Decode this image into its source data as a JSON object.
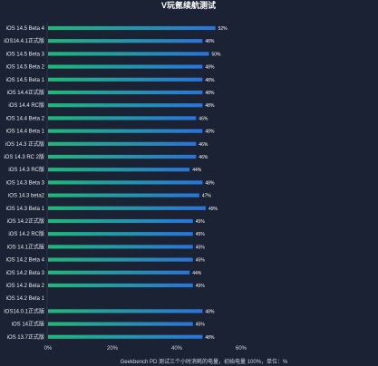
{
  "chart_data": {
    "type": "bar",
    "orientation": "horizontal",
    "title": "V玩氪续航测试",
    "xlabel": "Geekbench PD 测试三个小时消耗的电量，初始电量 100%，单位：%",
    "xlim": [
      0,
      60
    ],
    "xticks": [
      "0%",
      "20%",
      "40%",
      "60%"
    ],
    "grid": false,
    "categories": [
      "iOS 14.5 Beta 4",
      "iOS14.4.1正式版",
      "iOS 14.5 Beta 3",
      "iOS 14.5 Beta 2",
      "iOS 14.5 Beta 1",
      "iOS 14.4正式版",
      "iOS 14.4 RC版",
      "iOS 14.4 Beta 2",
      "iOS 14.4 Beta 1",
      "iOS 14.3 正式版",
      "iOS 14.3 RC 2版",
      "iOS 14.3 RC版",
      "iOS 14.3 Beta 3",
      "iOS 14.3 beta2",
      "iOS 14.3 Beta 1",
      "iOS 14.2正式版",
      "iOS 14.2 RC版",
      "iOS 14.1正式版",
      "iOS 14.2 Beta 4",
      "iOS 14.2 Beta 3",
      "iOS 14.2 Beta 2",
      "iOS 14.2 Beta 1",
      "iOS14.0.1正式版",
      "iOS 14正式版",
      "iOS 13.7正式版"
    ],
    "values": [
      52,
      48,
      50,
      48,
      48,
      48,
      48,
      46,
      48,
      46,
      46,
      44,
      48,
      47,
      49,
      45,
      45,
      45,
      45,
      44,
      45,
      null,
      48,
      45,
      48
    ],
    "value_labels": [
      "52%",
      "48%",
      "50%",
      "48%",
      "48%",
      "48%",
      "48%",
      "46%",
      "48%",
      "46%",
      "46%",
      "44%",
      "48%",
      "47%",
      "49%",
      "45%",
      "45%",
      "45%",
      "45%",
      "44%",
      "45%",
      "",
      "48%",
      "45%",
      "48%"
    ],
    "colors": {
      "bar_start": "#1fb87a",
      "bar_end": "#2a73d9",
      "background": "#1b2233"
    }
  }
}
